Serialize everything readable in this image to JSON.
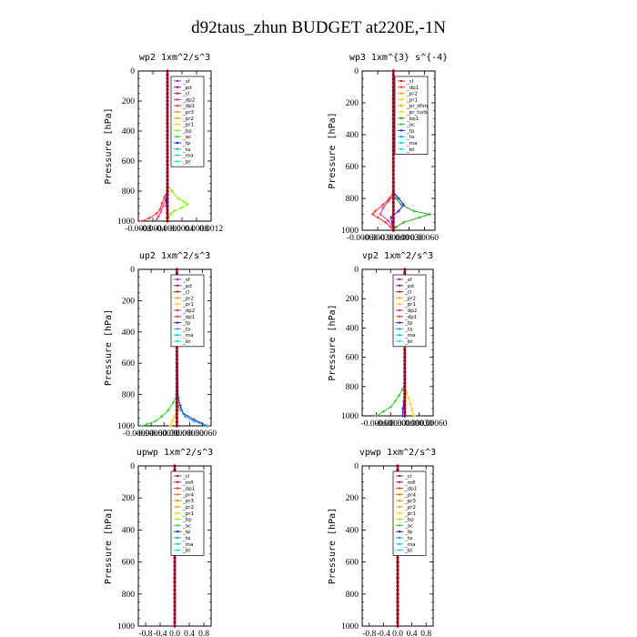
{
  "suptitle": "d92taus_zhun  BUDGET at220E,-1N",
  "chart_data": [
    {
      "type": "line",
      "title": "wp2  1xm^2/s^3",
      "ylabel": "Pressure [hPa]",
      "xlim": [
        -0.0008,
        0.0012
      ],
      "xticks": [
        "-0.0008",
        "-0.0004",
        "-0.0000",
        "0.0004",
        "0.0008",
        "0.0012"
      ],
      "xtick_values": [
        -0.0008,
        -0.0004,
        0.0,
        0.0004,
        0.0008,
        0.0012
      ],
      "ylim": [
        1000,
        0
      ],
      "yticks": [
        0,
        200,
        400,
        600,
        800,
        1000
      ],
      "legend": [
        "_sf",
        "_pd",
        "_cl",
        "_dp2",
        "_dp1",
        "_pr3",
        "_pr2",
        "_pr1",
        "_bp",
        "_ac",
        "_tp",
        "_ta",
        "_ma",
        "_bt"
      ],
      "series": [
        {
          "name": "_pr1",
          "color": "#7cfc00",
          "p": [
            760,
            800,
            850,
            870,
            890,
            910,
            930,
            950,
            970,
            990
          ],
          "v": [
            0.0,
            0.00012,
            0.0003,
            0.00045,
            0.00055,
            0.0004,
            0.0002,
            0.0001,
            3e-05,
            0.0
          ]
        },
        {
          "name": "_dp1",
          "color": "#ff3030",
          "p": [
            800,
            840,
            880,
            920,
            950,
            980,
            1000
          ],
          "v": [
            0.0,
            -8e-05,
            -0.00015,
            -0.0002,
            -0.0003,
            -0.0005,
            -0.0007
          ]
        },
        {
          "name": "_pd",
          "color": "#e83a8a",
          "p": [
            820,
            860,
            900,
            940,
            970,
            990
          ],
          "v": [
            0.0,
            -5e-05,
            -0.00012,
            -0.00018,
            -0.00025,
            -0.0003
          ]
        },
        {
          "name": "_tp",
          "color": "#2020ee",
          "p": [
            780,
            820,
            860,
            900,
            940,
            980
          ],
          "v": [
            0.0,
            -2e-05,
            -4e-05,
            -3e-05,
            -1e-05,
            0.0
          ]
        },
        {
          "name": "_cl",
          "color": "#cc1010",
          "p": [
            0,
            100,
            200,
            300,
            400,
            500,
            600,
            700,
            800,
            900,
            1000
          ],
          "v": [
            0,
            0,
            0,
            0,
            0,
            0,
            0,
            0,
            0,
            0,
            0
          ]
        }
      ]
    },
    {
      "type": "line",
      "title": "wp3  1xm^{3} s^{-4}",
      "ylabel": "Pressure [hPa]",
      "xlim": [
        -0.0006,
        0.0008
      ],
      "xticks": [
        "-0.00060",
        "-0.00030",
        "-0.00000",
        "0.00030",
        "0.00060"
      ],
      "xtick_values": [
        -0.0006,
        -0.0003,
        0.0,
        0.0003,
        0.0006
      ],
      "ylim": [
        1000,
        0
      ],
      "yticks": [
        0,
        200,
        400,
        600,
        800,
        1000
      ],
      "legend": [
        "_cl",
        "_dp1",
        "_pr2",
        "_pr1",
        "_pr_dfsn",
        "_pr_turb",
        "_bp1",
        "_ac",
        "_tp",
        "_ta",
        "_ma",
        "_bt"
      ],
      "series": [
        {
          "name": "_bp1",
          "color": "#22aa22",
          "p": [
            760,
            800,
            840,
            880,
            900,
            920,
            950,
            980,
            1000
          ],
          "v": [
            0.0,
            5e-05,
            0.00015,
            0.0004,
            0.0007,
            0.0005,
            0.0002,
            5e-05,
            0.0
          ]
        },
        {
          "name": "_dp1",
          "color": "#ff3030",
          "p": [
            760,
            800,
            840,
            880,
            900,
            920,
            950,
            980,
            1000
          ],
          "v": [
            0.0,
            -8e-05,
            -0.0002,
            -0.00035,
            -0.0004,
            -0.0003,
            -0.00015,
            -5e-05,
            0.0
          ]
        },
        {
          "name": "_tp",
          "color": "#2020ee",
          "p": [
            760,
            800,
            840,
            880,
            920,
            960,
            1000
          ],
          "v": [
            0.0,
            0.0001,
            0.0002,
            0.0001,
            -5e-05,
            -2e-05,
            0.0
          ]
        },
        {
          "name": "_pr2",
          "color": "#e83a8a",
          "p": [
            780,
            820,
            860,
            900,
            940,
            980
          ],
          "v": [
            0.0,
            -0.0001,
            -0.0002,
            -0.00025,
            -0.0001,
            0.0
          ]
        },
        {
          "name": "_cl",
          "color": "#cc1010",
          "p": [
            0,
            100,
            200,
            300,
            400,
            500,
            600,
            700,
            800,
            900,
            1000
          ],
          "v": [
            0,
            0,
            0,
            0,
            0,
            0,
            0,
            0,
            0,
            0,
            0
          ]
        }
      ]
    },
    {
      "type": "line",
      "title": "up2  1xm^2/s^3",
      "ylabel": "Pressure [hPa]",
      "xlim": [
        -0.0009,
        0.0008
      ],
      "xticks": [
        "-0.00090",
        "-0.00060",
        "-0.00030",
        "0.00000",
        "0.00030",
        "0.00060"
      ],
      "xtick_values": [
        -0.0009,
        -0.0006,
        -0.0003,
        0.0,
        0.0003,
        0.0006
      ],
      "ylim": [
        1000,
        0
      ],
      "yticks": [
        0,
        200,
        400,
        600,
        800,
        1000
      ],
      "legend": [
        "_sf",
        "_pd",
        "_cl",
        "_pr2",
        "_pr1",
        "_dp2",
        "_dp1",
        "_tp",
        "_ta",
        "_ma",
        "_bt"
      ],
      "series": [
        {
          "name": "_dp1",
          "color": "#33cc33",
          "p": [
            800,
            850,
            900,
            940,
            970,
            990,
            1000
          ],
          "v": [
            0.0,
            -8e-05,
            -0.0002,
            -0.00035,
            -0.0005,
            -0.0007,
            -0.0008
          ]
        },
        {
          "name": "_pr1",
          "color": "#ffcc00",
          "p": [
            820,
            860,
            900,
            940,
            970,
            1000
          ],
          "v": [
            0.0,
            5e-05,
            4e-05,
            -5e-05,
            -0.0001,
            -0.00015
          ]
        },
        {
          "name": "_tp",
          "color": "#2020ee",
          "p": [
            120,
            150,
            180,
            210,
            240,
            820,
            870,
            920,
            960,
            1000
          ],
          "v": [
            0.0,
            4e-05,
            6e-05,
            3e-05,
            0.0,
            3e-05,
            8e-05,
            0.00015,
            0.0004,
            0.0007
          ]
        },
        {
          "name": "_ta",
          "color": "#1aa5c8",
          "p": [
            860,
            900,
            940,
            970,
            1000
          ],
          "v": [
            0.0,
            0.0001,
            0.0002,
            0.0004,
            0.0007
          ]
        },
        {
          "name": "_cl",
          "color": "#cc1010",
          "p": [
            0,
            100,
            200,
            300,
            400,
            500,
            600,
            700,
            800,
            900,
            1000
          ],
          "v": [
            0,
            0,
            0,
            0,
            0,
            0,
            0,
            0,
            0,
            0,
            0
          ]
        }
      ]
    },
    {
      "type": "line",
      "title": "vp2  1xm^2/s^3",
      "ylabel": "Pressure [hPa]",
      "xlim": [
        -0.0009,
        0.0006
      ],
      "xticks": [
        "-0.00060",
        "-0.00030",
        "0.00000",
        "0.00030",
        "0.00060"
      ],
      "xtick_values": [
        -0.0006,
        -0.0003,
        0.0,
        0.0003,
        0.0006
      ],
      "ylim": [
        1000,
        0
      ],
      "yticks": [
        0,
        200,
        400,
        600,
        800,
        1000
      ],
      "legend": [
        "_sf",
        "_pd",
        "_cl",
        "_pr2",
        "_pr1",
        "_dp2",
        "_dp1",
        "_tp",
        "_ta",
        "_ma",
        "_bt"
      ],
      "series": [
        {
          "name": "_dp1",
          "color": "#33cc33",
          "p": [
            150,
            180,
            210,
            780,
            820,
            860,
            900,
            940,
            970,
            1000
          ],
          "v": [
            0.0,
            -3e-05,
            0.0,
            0.0,
            -5e-05,
            -0.00012,
            -0.0002,
            -0.0003,
            -0.00045,
            -0.0006
          ]
        },
        {
          "name": "_pr1",
          "color": "#ffcc00",
          "p": [
            800,
            840,
            880,
            920,
            960,
            1000
          ],
          "v": [
            0.0,
            4e-05,
            8e-05,
            0.00012,
            0.00015,
            0.0002
          ]
        },
        {
          "name": "_tp",
          "color": "#2020ee",
          "p": [
            850,
            900,
            950,
            1000
          ],
          "v": [
            0.0,
            -2e-05,
            -4e-05,
            -5e-05
          ]
        },
        {
          "name": "_cl",
          "color": "#cc1010",
          "p": [
            0,
            100,
            200,
            300,
            400,
            500,
            600,
            700,
            800,
            900,
            1000
          ],
          "v": [
            0,
            0,
            0,
            0,
            0,
            0,
            0,
            0,
            0,
            0,
            0
          ]
        }
      ]
    },
    {
      "type": "line",
      "title": "upwp  1xm^2/s^3",
      "ylabel": "Pressure [hPa]",
      "xlim": [
        -1.0,
        1.0
      ],
      "xticks": [
        "-0.8",
        "-0.4",
        "0.0",
        "0.4",
        "0.8"
      ],
      "xtick_values": [
        -0.8,
        -0.4,
        0.0,
        0.4,
        0.8
      ],
      "ylim": [
        1000,
        0
      ],
      "yticks": [
        0,
        200,
        400,
        600,
        800,
        1000
      ],
      "legend": [
        "_cl",
        "_mfl",
        "_dp1",
        "_pr4",
        "_pr3",
        "_pr2",
        "_pr1",
        "_bp",
        "_ac",
        "_tp",
        "_ta",
        "_ma",
        "_bt"
      ],
      "series": [
        {
          "name": "_cl",
          "color": "#cc1010",
          "p": [
            0,
            100,
            200,
            300,
            400,
            500,
            600,
            700,
            800,
            900,
            1000
          ],
          "v": [
            0,
            0,
            0,
            0,
            0,
            0,
            0,
            0,
            0,
            0,
            0
          ]
        }
      ]
    },
    {
      "type": "line",
      "title": "vpwp  1xm^2/s^3",
      "ylabel": "Pressure [hPa]",
      "xlim": [
        -1.0,
        1.0
      ],
      "xticks": [
        "-0.8",
        "-0.4",
        "0.0",
        "0.4",
        "0.8"
      ],
      "xtick_values": [
        -0.8,
        -0.4,
        0.0,
        0.4,
        0.8
      ],
      "ylim": [
        1000,
        0
      ],
      "yticks": [
        0,
        200,
        400,
        600,
        800,
        1000
      ],
      "legend": [
        "_cl",
        "_mfl",
        "_dp1",
        "_pr4",
        "_pr3",
        "_pr2",
        "_pr1",
        "_bp",
        "_ac",
        "_tp",
        "_ta",
        "_ma",
        "_bt"
      ],
      "series": [
        {
          "name": "_cl",
          "color": "#cc1010",
          "p": [
            0,
            100,
            200,
            300,
            400,
            500,
            600,
            700,
            800,
            900,
            1000
          ],
          "v": [
            0,
            0,
            0,
            0,
            0,
            0,
            0,
            0,
            0,
            0,
            0
          ]
        }
      ]
    }
  ],
  "legend_colors": {
    "_sf": "#8a2be2",
    "_pd": "#9b1050",
    "_cl": "#c8102e",
    "_dp2": "#ff2060",
    "_dp1": "#ff3030",
    "_pr4": "#ff6a00",
    "_pr3": "#ff8c00",
    "_pr2": "#ffa500",
    "_pr1": "#ffcc00",
    "_pr_dfsn": "#ffa500",
    "_pr_turb": "#ffd700",
    "_bp1": "#22aa22",
    "_bp": "#7cfc00",
    "_ac": "#33cc33",
    "_tp": "#2020ee",
    "_ta": "#1aa5c8",
    "_ma": "#00ced1",
    "_bt": "#00e5ff",
    "_mfl": "#b0105a"
  }
}
